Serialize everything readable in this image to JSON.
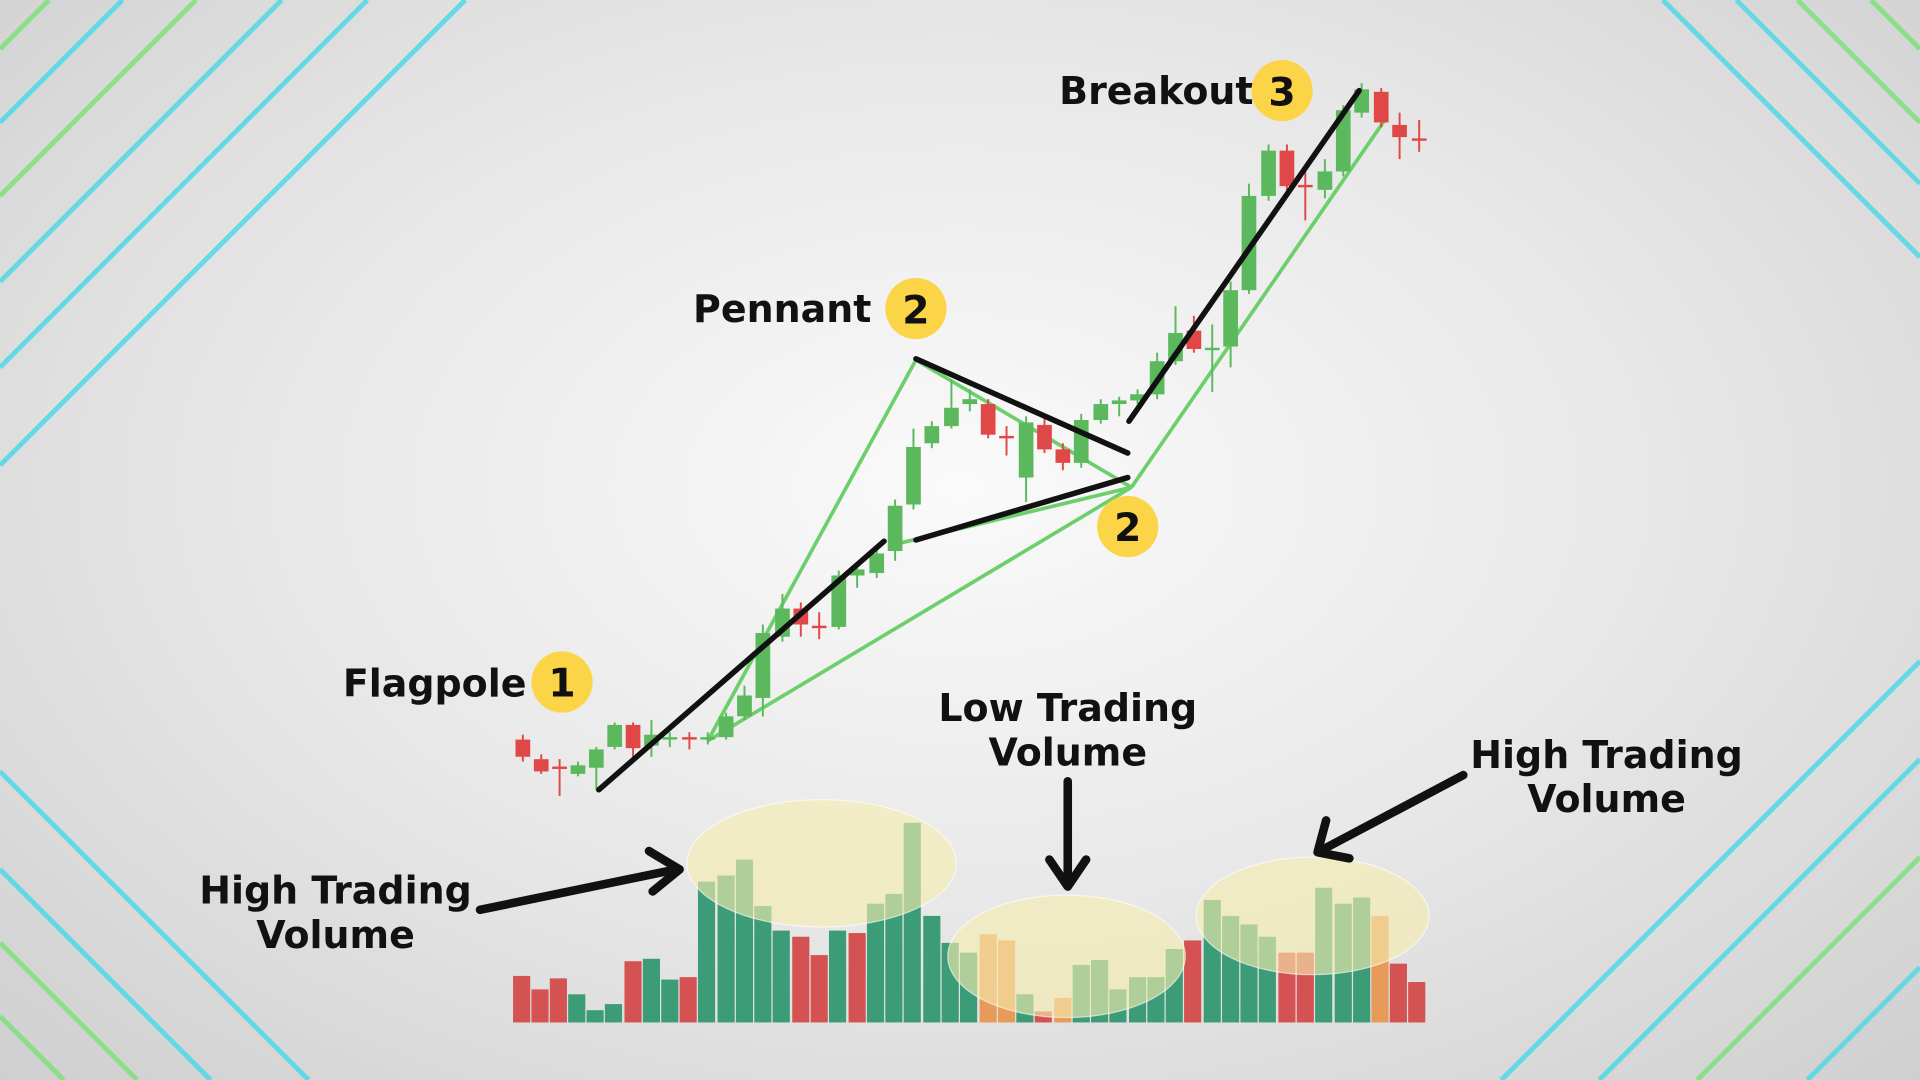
{
  "labels": {
    "flagpole": "Flagpole",
    "pennant": "Pennant",
    "breakout": "Breakout",
    "low_volume_line1": "Low Trading",
    "low_volume_line2": "Volume",
    "high_volume_left_line1": "High Trading",
    "high_volume_left_line2": "Volume",
    "high_volume_right_line1": "High Trading",
    "high_volume_right_line2": "Volume"
  },
  "badges": {
    "flagpole": "1",
    "pennant": "2",
    "pennant_apex": "2",
    "breakout": "3"
  },
  "colors": {
    "bullish": "#5cb85c",
    "bearish": "#e04848",
    "volume_green": "#3d9c78",
    "volume_red": "#d45252",
    "volume_orange": "#e89a5a",
    "badge": "#fcd447",
    "trendline_green": "#6ccf6c",
    "highlight": "#f6eeb0"
  }
}
